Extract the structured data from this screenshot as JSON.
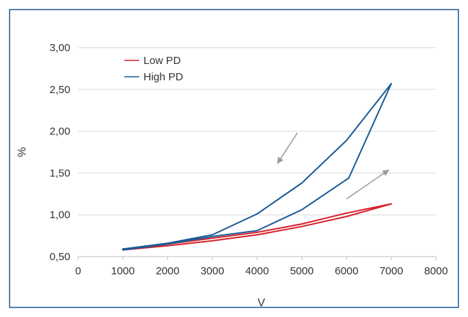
{
  "chart_data": {
    "type": "line",
    "xlabel": "V",
    "ylabel": "%",
    "xlim": [
      0,
      8000
    ],
    "ylim": [
      0.5,
      3.0
    ],
    "x_ticks": [
      0,
      1000,
      2000,
      3000,
      4000,
      5000,
      6000,
      7000,
      8000
    ],
    "x_tick_labels": [
      "0",
      "1000",
      "2000",
      "3000",
      "4000",
      "5000",
      "6000",
      "7000",
      "8000"
    ],
    "y_ticks": [
      0.5,
      1.0,
      1.5,
      2.0,
      2.5,
      3.0
    ],
    "y_tick_labels": [
      "0,50",
      "1,00",
      "1,50",
      "2,00",
      "2,50",
      "3,00"
    ],
    "grid": "horizontal",
    "legend_position": "top-left",
    "series": [
      {
        "name": "Low PD",
        "color": "#d7212b",
        "points": [
          [
            1000,
            0.58
          ],
          [
            2000,
            0.63
          ],
          [
            3000,
            0.69
          ],
          [
            4000,
            0.76
          ],
          [
            5000,
            0.86
          ],
          [
            6000,
            0.98
          ],
          [
            7000,
            1.13
          ],
          [
            6000,
            1.02
          ],
          [
            5000,
            0.89
          ],
          [
            4000,
            0.79
          ],
          [
            3000,
            0.72
          ],
          [
            2000,
            0.65
          ],
          [
            1000,
            0.59
          ]
        ]
      },
      {
        "name": "High PD",
        "color": "#1a5a96",
        "points": [
          [
            1000,
            0.58
          ],
          [
            2000,
            0.65
          ],
          [
            3000,
            0.74
          ],
          [
            4000,
            0.81
          ],
          [
            5000,
            1.06
          ],
          [
            6050,
            1.44
          ],
          [
            7000,
            2.57
          ],
          [
            6000,
            1.89
          ],
          [
            5000,
            1.38
          ],
          [
            4000,
            1.01
          ],
          [
            3000,
            0.76
          ],
          [
            2000,
            0.66
          ],
          [
            1000,
            0.59
          ]
        ]
      }
    ],
    "annotations": [
      {
        "type": "arrow",
        "name": "arrow-decreasing",
        "from": [
          4900,
          1.98
        ],
        "to": [
          4450,
          1.61
        ],
        "color": "#9b9b9b"
      },
      {
        "type": "arrow",
        "name": "arrow-increasing",
        "from": [
          6000,
          1.19
        ],
        "to": [
          6950,
          1.54
        ],
        "color": "#9b9b9b"
      }
    ],
    "frame_color": "#1a5a96",
    "grid_color": "#d9d9d9"
  }
}
